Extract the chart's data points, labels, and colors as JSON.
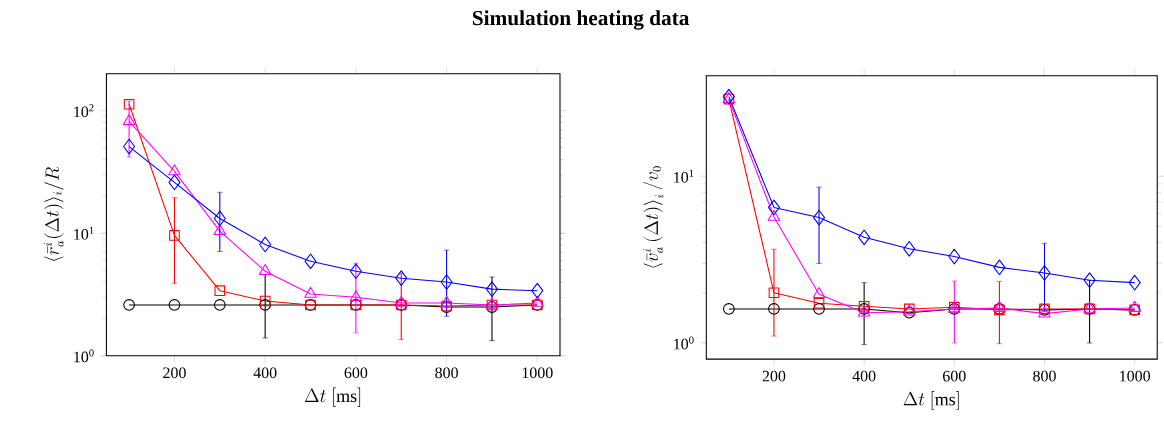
{
  "chart_data": [
    {
      "type": "line",
      "title": "Simulation heating data",
      "xlabel": "\\Delta t\\ [\\mathrm{ms}]",
      "ylabel": "\\langle \\bar{r}^{i}_{a}(\\Delta t)\\rangle_{i}/R",
      "log": "y",
      "line_style": "solid",
      "x": [
        100,
        200,
        300,
        400,
        500,
        600,
        700,
        800,
        900,
        1000
      ],
      "xlim": [
        50,
        1050
      ],
      "xticks": [
        200,
        400,
        600,
        800,
        1000
      ],
      "ylim": [
        1,
        200
      ],
      "yticks": [
        {
          "value": 1,
          "label": "10$^{0}$"
        },
        {
          "value": 10,
          "label": "10$^{1}$"
        },
        {
          "value": 100,
          "label": "10$^{2}$"
        }
      ],
      "series": [
        {
          "color": "#000000",
          "marker": "circle",
          "values": [
            2.6,
            2.6,
            2.6,
            2.6,
            2.6,
            2.6,
            2.6,
            2.5,
            2.5,
            2.6
          ],
          "errors": [
            null,
            null,
            null,
            [
              1.4,
              4.6
            ],
            null,
            null,
            null,
            null,
            [
              1.33,
              4.4
            ],
            null
          ]
        },
        {
          "color": "#ff0000",
          "marker": "square",
          "values": [
            113,
            9.6,
            3.4,
            2.8,
            2.6,
            2.6,
            2.6,
            2.55,
            2.6,
            2.6
          ],
          "errors": [
            null,
            [
              3.9,
              19.5
            ],
            null,
            null,
            null,
            null,
            [
              1.36,
              4.7
            ],
            null,
            null,
            null
          ]
        },
        {
          "color": "#ff00ff",
          "marker": "triangle",
          "values": [
            82,
            32,
            10.4,
            4.9,
            3.2,
            3.0,
            2.7,
            2.7,
            2.6,
            2.7
          ],
          "errors": [
            [
              42,
              120
            ],
            null,
            null,
            null,
            null,
            [
              1.54,
              5.7
            ],
            null,
            null,
            null,
            null
          ]
        },
        {
          "color": "#0000ff",
          "marker": "diamond",
          "values": [
            51,
            26,
            13.2,
            8.1,
            5.9,
            4.9,
            4.3,
            4.0,
            3.5,
            3.4
          ],
          "errors": [
            null,
            null,
            [
              7.1,
              21.6
            ],
            null,
            null,
            null,
            null,
            [
              2.1,
              7.3
            ],
            null,
            null
          ]
        }
      ]
    },
    {
      "type": "line",
      "xlabel": "\\Delta t\\ [\\mathrm{ms}]",
      "ylabel": "\\left\\langle \\bar{v}^{i}_{a}\\left(\\Delta t\\right)\\right\\rangle_{i}/v_{0}",
      "log": "y",
      "line_style": "solid",
      "x": [
        100,
        200,
        300,
        400,
        500,
        600,
        700,
        800,
        900,
        1000
      ],
      "xlim": [
        50,
        1050
      ],
      "xticks": [
        200,
        400,
        600,
        800,
        1000
      ],
      "ylim": [
        0.8,
        40
      ],
      "yticks": [
        {
          "value": 1,
          "label": "10$^{0}$"
        },
        {
          "value": 10,
          "label": "10$^{1}$"
        }
      ],
      "series": [
        {
          "color": "#000000",
          "marker": "circle",
          "values": [
            1.6,
            1.6,
            1.6,
            1.6,
            1.52,
            1.6,
            1.6,
            1.58,
            1.6,
            1.58
          ],
          "errors": [
            null,
            null,
            null,
            [
              0.98,
              2.3
            ],
            null,
            null,
            null,
            null,
            [
              1.0,
              2.38
            ],
            null
          ]
        },
        {
          "color": "#ff0000",
          "marker": "square",
          "values": [
            29,
            2.0,
            1.73,
            1.66,
            1.6,
            1.64,
            1.58,
            1.6,
            1.6,
            1.58
          ],
          "errors": [
            null,
            [
              1.1,
              3.65
            ],
            null,
            null,
            null,
            null,
            [
              0.99,
              2.34
            ],
            null,
            null,
            null
          ]
        },
        {
          "color": "#ff00ff",
          "marker": "triangle",
          "values": [
            29,
            5.7,
            1.96,
            1.52,
            1.54,
            1.6,
            1.62,
            1.5,
            1.6,
            1.62
          ],
          "errors": [
            null,
            null,
            null,
            null,
            null,
            [
              1.0,
              2.35
            ],
            null,
            null,
            null,
            null
          ]
        },
        {
          "color": "#0000ff",
          "marker": "diamond",
          "values": [
            30,
            6.5,
            5.65,
            4.3,
            3.67,
            3.3,
            2.84,
            2.63,
            2.38,
            2.3
          ],
          "errors": [
            null,
            null,
            [
              3.0,
              8.6
            ],
            null,
            null,
            null,
            null,
            [
              1.54,
              3.96
            ],
            null,
            null
          ]
        }
      ]
    }
  ]
}
